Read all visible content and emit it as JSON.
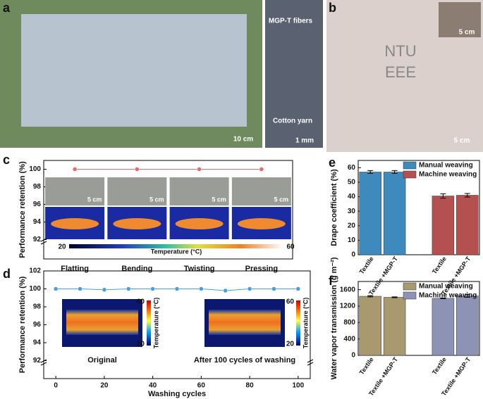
{
  "panels": {
    "labels": [
      "a",
      "b",
      "c",
      "d",
      "e",
      "f"
    ]
  },
  "photos": {
    "a_scale": "10 cm",
    "fibers": "MGP-T fibers",
    "yarn": "Cotton yarn",
    "zoom_scale": "1 mm",
    "b_text": [
      "NTU",
      "EEE"
    ],
    "b_inset_scale": "5 cm",
    "b_scale": "5 cm",
    "c_scales": [
      "5 cm",
      "5 cm",
      "5 cm",
      "5 cm"
    ]
  },
  "chart_data": [
    {
      "type": "line",
      "ylabel": "Performance retention (%)",
      "categories": [
        "Flatting",
        "Bending",
        "Twisting",
        "Pressing"
      ],
      "values": [
        100,
        100,
        100,
        100
      ],
      "color": "#e86a6a",
      "ylim": [
        89.8,
        101
      ],
      "yticks": [
        92,
        94,
        96,
        98,
        100
      ],
      "colorbar": {
        "title": "Temperature (°C)",
        "ticks": [
          20,
          60
        ]
      }
    },
    {
      "type": "line",
      "ylabel": "Performance retention (%)",
      "xlabel": "Washing cycles",
      "x": [
        0,
        10,
        20,
        30,
        40,
        50,
        60,
        70,
        80,
        90,
        100
      ],
      "values": [
        100,
        100,
        99.9,
        100,
        100,
        100,
        100,
        99.8,
        100,
        100,
        100
      ],
      "color": "#4a9fe0",
      "xlim": [
        -5,
        105
      ],
      "xticks": [
        0,
        20,
        40,
        60,
        80,
        100
      ],
      "ylim": [
        90,
        102
      ],
      "yticks": [
        92,
        94,
        96,
        98,
        100,
        102
      ],
      "insets": [
        "Original",
        "After 100 cycles of washing"
      ],
      "colorbar": {
        "title": "Temperature (°C)",
        "ticks": [
          20,
          60
        ]
      }
    },
    {
      "type": "bar",
      "ylabel": "Drape coefficient (%)",
      "categories": [
        "Textile",
        "Textile +MGP-T",
        "Textile",
        "Textile +MGP-T"
      ],
      "series": [
        {
          "name": "Manual weaving",
          "color": "#3d8bbd",
          "values": [
            57,
            57,
            null,
            null
          ],
          "errors": [
            1,
            1,
            null,
            null
          ]
        },
        {
          "name": "Machine weaving",
          "color": "#b55050",
          "values": [
            null,
            null,
            40.5,
            41
          ],
          "errors": [
            null,
            null,
            1.5,
            1.2
          ]
        }
      ],
      "ylim": [
        0,
        65
      ],
      "yticks": [
        0,
        10,
        20,
        30,
        40,
        50,
        60
      ]
    },
    {
      "type": "bar",
      "ylabel": "Water vapor transmission (g m⁻²)",
      "categories": [
        "Textile",
        "Textile +MGP-T",
        "Textile",
        "Textile +MGP-T"
      ],
      "series": [
        {
          "name": "Manual weaving",
          "color": "#a8996f",
          "values": [
            1440,
            1415,
            null,
            null
          ],
          "errors": [
            15,
            10,
            null,
            null
          ]
        },
        {
          "name": "Machine weaving",
          "color": "#8c93b4",
          "values": [
            null,
            null,
            1390,
            1450
          ],
          "errors": [
            null,
            null,
            8,
            35
          ]
        }
      ],
      "ylim": [
        0,
        1800
      ],
      "yticks": [
        0,
        400,
        800,
        1200,
        1600
      ]
    }
  ]
}
